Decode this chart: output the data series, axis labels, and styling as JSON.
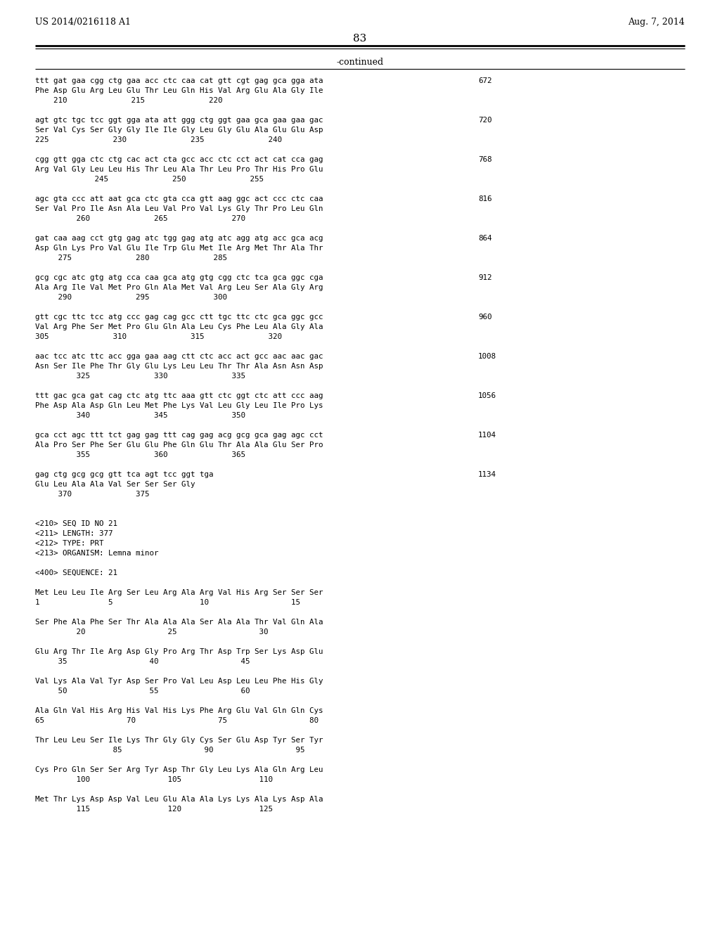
{
  "header_left": "US 2014/0216118 A1",
  "header_right": "Aug. 7, 2014",
  "page_number": "83",
  "continued_label": "-continued",
  "background_color": "#ffffff",
  "text_color": "#000000",
  "content_lines": [
    [
      "ttt gat gaa cgg ctg gaa acc ctc caa cat gtt cgt gag gca gga ata",
      "672"
    ],
    [
      "Phe Asp Glu Arg Leu Glu Thr Leu Gln His Val Arg Glu Ala Gly Ile",
      ""
    ],
    [
      "    210              215              220",
      ""
    ],
    [
      "",
      ""
    ],
    [
      "agt gtc tgc tcc ggt gga ata att ggg ctg ggt gaa gca gaa gaa gac",
      "720"
    ],
    [
      "Ser Val Cys Ser Gly Gly Ile Ile Gly Leu Gly Glu Ala Glu Glu Asp",
      ""
    ],
    [
      "225              230              235              240",
      ""
    ],
    [
      "",
      ""
    ],
    [
      "cgg gtt gga ctc ctg cac act cta gcc acc ctc cct act cat cca gag",
      "768"
    ],
    [
      "Arg Val Gly Leu Leu His Thr Leu Ala Thr Leu Pro Thr His Pro Glu",
      ""
    ],
    [
      "             245              250              255",
      ""
    ],
    [
      "",
      ""
    ],
    [
      "agc gta ccc att aat gca ctc gta cca gtt aag ggc act ccc ctc caa",
      "816"
    ],
    [
      "Ser Val Pro Ile Asn Ala Leu Val Pro Val Lys Gly Thr Pro Leu Gln",
      ""
    ],
    [
      "         260              265              270",
      ""
    ],
    [
      "",
      ""
    ],
    [
      "gat caa aag cct gtg gag atc tgg gag atg atc agg atg acc gca acg",
      "864"
    ],
    [
      "Asp Gln Lys Pro Val Glu Ile Trp Glu Met Ile Arg Met Thr Ala Thr",
      ""
    ],
    [
      "     275              280              285",
      ""
    ],
    [
      "",
      ""
    ],
    [
      "gcg cgc atc gtg atg cca caa gca atg gtg cgg ctc tca gca ggc cga",
      "912"
    ],
    [
      "Ala Arg Ile Val Met Pro Gln Ala Met Val Arg Leu Ser Ala Gly Arg",
      ""
    ],
    [
      "     290              295              300",
      ""
    ],
    [
      "",
      ""
    ],
    [
      "gtt cgc ttc tcc atg ccc gag cag gcc ctt tgc ttc ctc gca ggc gcc",
      "960"
    ],
    [
      "Val Arg Phe Ser Met Pro Glu Gln Ala Leu Cys Phe Leu Ala Gly Ala",
      ""
    ],
    [
      "305              310              315              320",
      ""
    ],
    [
      "",
      ""
    ],
    [
      "aac tcc atc ttc acc gga gaa aag ctt ctc acc act gcc aac aac gac",
      "1008"
    ],
    [
      "Asn Ser Ile Phe Thr Gly Glu Lys Leu Leu Thr Thr Ala Asn Asn Asp",
      ""
    ],
    [
      "         325              330              335",
      ""
    ],
    [
      "",
      ""
    ],
    [
      "ttt gac gca gat cag ctc atg ttc aaa gtt ctc ggt ctc att ccc aag",
      "1056"
    ],
    [
      "Phe Asp Ala Asp Gln Leu Met Phe Lys Val Leu Gly Leu Ile Pro Lys",
      ""
    ],
    [
      "         340              345              350",
      ""
    ],
    [
      "",
      ""
    ],
    [
      "gca cct agc ttt tct gag gag ttt cag gag acg gcg gca gag agc cct",
      "1104"
    ],
    [
      "Ala Pro Ser Phe Ser Glu Glu Phe Gln Glu Thr Ala Ala Glu Ser Pro",
      ""
    ],
    [
      "         355              360              365",
      ""
    ],
    [
      "",
      ""
    ],
    [
      "gag ctg gcg gcg gtt tca agt tcc ggt tga",
      "1134"
    ],
    [
      "Glu Leu Ala Ala Val Ser Ser Ser Gly",
      ""
    ],
    [
      "     370              375",
      ""
    ],
    [
      "",
      ""
    ],
    [
      "",
      ""
    ],
    [
      "<210> SEQ ID NO 21",
      ""
    ],
    [
      "<211> LENGTH: 377",
      ""
    ],
    [
      "<212> TYPE: PRT",
      ""
    ],
    [
      "<213> ORGANISM: Lemna minor",
      ""
    ],
    [
      "",
      ""
    ],
    [
      "<400> SEQUENCE: 21",
      ""
    ],
    [
      "",
      ""
    ],
    [
      "Met Leu Leu Ile Arg Ser Leu Arg Ala Arg Val His Arg Ser Ser Ser",
      ""
    ],
    [
      "1               5                   10                  15",
      ""
    ],
    [
      "",
      ""
    ],
    [
      "Ser Phe Ala Phe Ser Thr Ala Ala Ala Ser Ala Ala Thr Val Gln Ala",
      ""
    ],
    [
      "         20                  25                  30",
      ""
    ],
    [
      "",
      ""
    ],
    [
      "Glu Arg Thr Ile Arg Asp Gly Pro Arg Thr Asp Trp Ser Lys Asp Glu",
      ""
    ],
    [
      "     35                  40                  45",
      ""
    ],
    [
      "",
      ""
    ],
    [
      "Val Lys Ala Val Tyr Asp Ser Pro Val Leu Asp Leu Leu Phe His Gly",
      ""
    ],
    [
      "     50                  55                  60",
      ""
    ],
    [
      "",
      ""
    ],
    [
      "Ala Gln Val His Arg His Val His Lys Phe Arg Glu Val Gln Gln Cys",
      ""
    ],
    [
      "65                  70                  75                  80",
      ""
    ],
    [
      "",
      ""
    ],
    [
      "Thr Leu Leu Ser Ile Lys Thr Gly Gly Cys Ser Glu Asp Tyr Ser Tyr",
      ""
    ],
    [
      "                 85                  90                  95",
      ""
    ],
    [
      "",
      ""
    ],
    [
      "Cys Pro Gln Ser Ser Arg Tyr Asp Thr Gly Leu Lys Ala Gln Arg Leu",
      ""
    ],
    [
      "         100                 105                 110",
      ""
    ],
    [
      "",
      ""
    ],
    [
      "Met Thr Lys Asp Asp Val Leu Glu Ala Ala Lys Lys Ala Lys Asp Ala",
      ""
    ],
    [
      "         115                 120                 125",
      ""
    ]
  ]
}
